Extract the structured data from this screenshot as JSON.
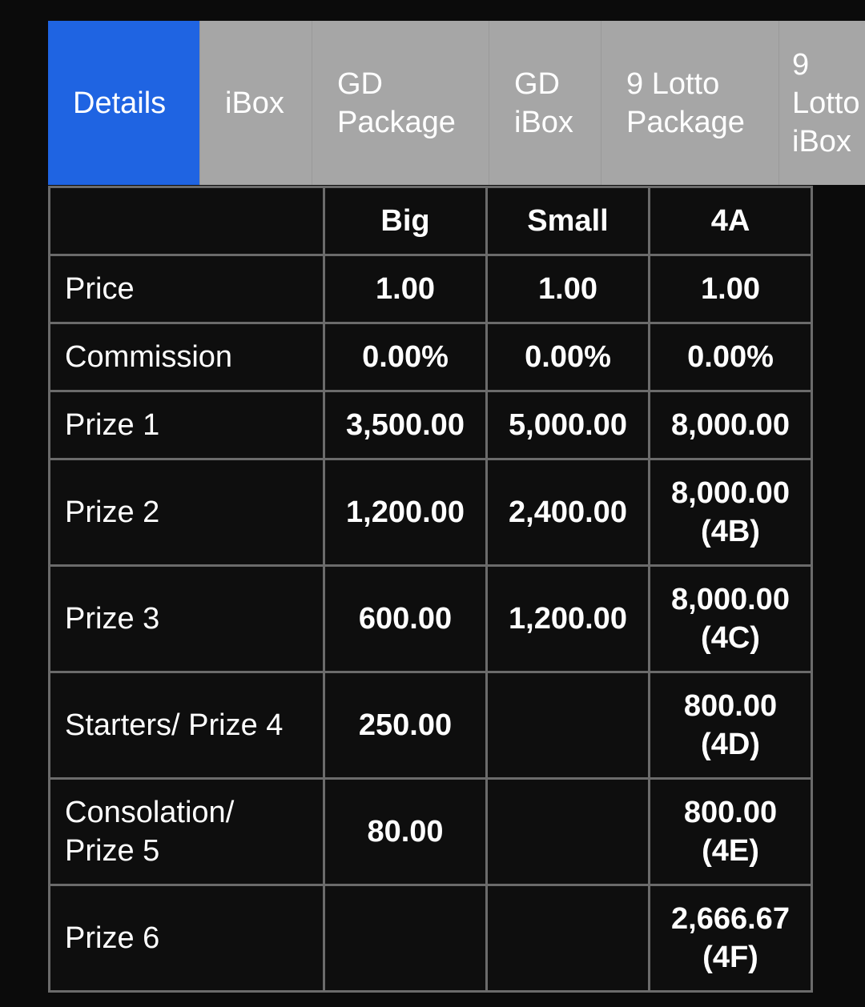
{
  "tabs": [
    {
      "label": "Details",
      "active": true
    },
    {
      "label": "iBox",
      "active": false
    },
    {
      "label": "GD Package",
      "active": false
    },
    {
      "label": "GD iBox",
      "active": false
    },
    {
      "label": "9 Lotto Package",
      "active": false
    },
    {
      "label": "9 Lotto iBox",
      "active": false
    }
  ],
  "colors": {
    "active_tab": "#1f64e2",
    "inactive_tab": "#a6a6a6",
    "border": "#6b6b6b",
    "background": "#0e0e0e"
  },
  "table": {
    "headers": [
      "",
      "Big",
      "Small",
      "4A"
    ],
    "rows": [
      {
        "label": "Price",
        "big": "1.00",
        "small": "1.00",
        "a4": "1.00",
        "a4_sub": ""
      },
      {
        "label": "Commission",
        "big": "0.00%",
        "small": "0.00%",
        "a4": "0.00%",
        "a4_sub": ""
      },
      {
        "label": "Prize 1",
        "big": "3,500.00",
        "small": "5,000.00",
        "a4": "8,000.00",
        "a4_sub": ""
      },
      {
        "label": "Prize 2",
        "big": "1,200.00",
        "small": "2,400.00",
        "a4": "8,000.00",
        "a4_sub": "(4B)"
      },
      {
        "label": "Prize 3",
        "big": "600.00",
        "small": "1,200.00",
        "a4": "8,000.00",
        "a4_sub": "(4C)"
      },
      {
        "label": "Starters/ Prize 4",
        "big": "250.00",
        "small": "",
        "a4": "800.00",
        "a4_sub": "(4D)"
      },
      {
        "label": "Consolation/ Prize 5",
        "big": "80.00",
        "small": "",
        "a4": "800.00",
        "a4_sub": "(4E)"
      },
      {
        "label": "Prize 6",
        "big": "",
        "small": "",
        "a4": "2,666.67",
        "a4_sub": "(4F)"
      }
    ]
  }
}
